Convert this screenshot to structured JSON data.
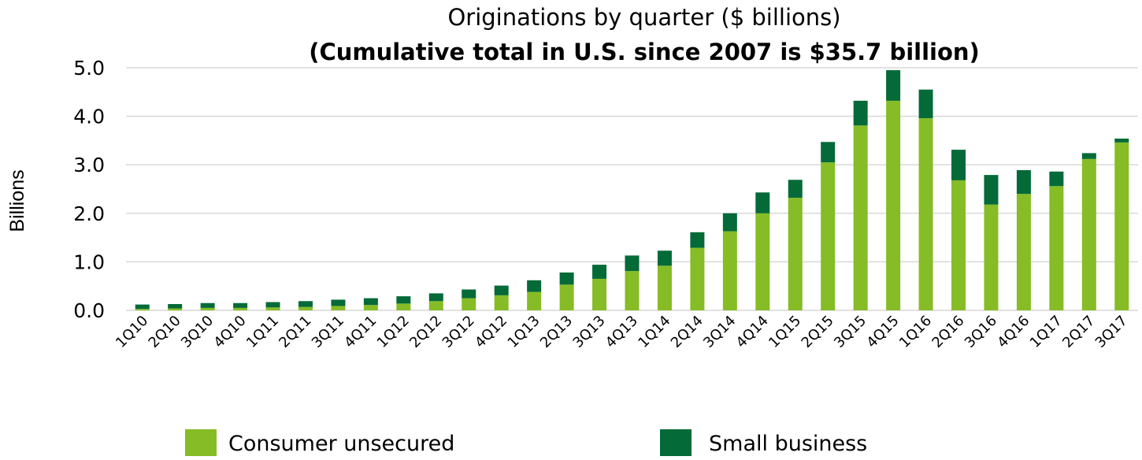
{
  "chart_data": {
    "type": "bar",
    "stacked": true,
    "title": "Originations by quarter ($ billions)",
    "subtitle": "(Cumulative total in U.S. since 2007 is $35.7 billion)",
    "xlabel": "",
    "ylabel": "Billions",
    "ylim": [
      0,
      5
    ],
    "yticks": [
      "0.0",
      "1.0",
      "2.0",
      "3.0",
      "4.0",
      "5.0"
    ],
    "grid": true,
    "legend_position": "bottom",
    "categories": [
      "1Q10",
      "2Q10",
      "3Q10",
      "4Q10",
      "1Q11",
      "2Q11",
      "3Q11",
      "4Q11",
      "1Q12",
      "2Q12",
      "3Q12",
      "4Q12",
      "1Q13",
      "2Q13",
      "3Q13",
      "4Q13",
      "1Q14",
      "2Q14",
      "3Q14",
      "4Q14",
      "1Q15",
      "2Q15",
      "3Q15",
      "4Q15",
      "1Q16",
      "2Q16",
      "3Q16",
      "4Q16",
      "1Q17",
      "2Q17",
      "3Q17"
    ],
    "series": [
      {
        "name": "Consumer unsecured",
        "color": "#86bc25",
        "values": [
          0.03,
          0.04,
          0.05,
          0.05,
          0.06,
          0.07,
          0.09,
          0.11,
          0.14,
          0.19,
          0.25,
          0.31,
          0.38,
          0.53,
          0.65,
          0.81,
          0.92,
          1.29,
          1.63,
          2.0,
          2.32,
          3.05,
          3.81,
          4.32,
          3.96,
          2.68,
          2.18,
          2.4,
          2.56,
          3.12,
          3.46
        ]
      },
      {
        "name": "Small business",
        "color": "#046a38",
        "values": [
          0.09,
          0.09,
          0.1,
          0.1,
          0.11,
          0.12,
          0.13,
          0.14,
          0.15,
          0.16,
          0.18,
          0.2,
          0.24,
          0.25,
          0.29,
          0.32,
          0.31,
          0.32,
          0.37,
          0.43,
          0.37,
          0.42,
          0.51,
          0.63,
          0.59,
          0.63,
          0.61,
          0.49,
          0.3,
          0.12,
          0.08
        ]
      }
    ]
  }
}
